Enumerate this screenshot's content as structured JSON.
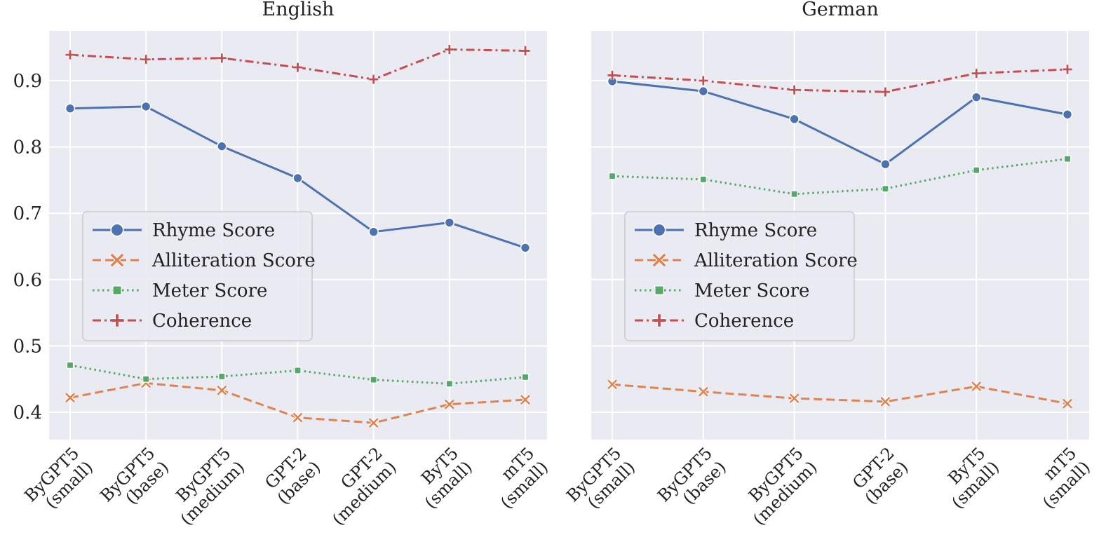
{
  "chart_data": [
    {
      "type": "line",
      "title": "English",
      "xlabel": "",
      "ylabel": "",
      "ylim": [
        0.35,
        0.97
      ],
      "yticks": [
        "0.4",
        "0.5",
        "0.6",
        "0.7",
        "0.8",
        "0.9"
      ],
      "legend_position": "center-left",
      "categories": [
        [
          "ByGPT5",
          "(small)"
        ],
        [
          "ByGPT5",
          "(base)"
        ],
        [
          "ByGPT5",
          "(medium)"
        ],
        [
          "GPT-2",
          "(base)"
        ],
        [
          "GPT-2",
          "(medium)"
        ],
        [
          "ByT5",
          "(small)"
        ],
        [
          "mT5",
          "(small)"
        ]
      ],
      "series": [
        {
          "name": "Rhyme Score",
          "marker": "circle",
          "dash": "solid",
          "color": "#4c72b0",
          "values": [
            0.858,
            0.861,
            0.801,
            0.753,
            0.672,
            0.686,
            0.648
          ]
        },
        {
          "name": "Alliteration Score",
          "marker": "x",
          "dash": "dashed",
          "color": "#dd8452",
          "values": [
            0.422,
            0.444,
            0.433,
            0.392,
            0.384,
            0.412,
            0.419
          ]
        },
        {
          "name": "Meter Score",
          "marker": "square",
          "dash": "dotted",
          "color": "#55a868",
          "values": [
            0.471,
            0.45,
            0.454,
            0.463,
            0.449,
            0.443,
            0.453
          ]
        },
        {
          "name": "Coherence",
          "marker": "plus",
          "dash": "dashdot",
          "color": "#c44e52",
          "values": [
            0.939,
            0.932,
            0.934,
            0.92,
            0.902,
            0.947,
            0.945
          ]
        }
      ]
    },
    {
      "type": "line",
      "title": "German",
      "xlabel": "",
      "ylabel": "",
      "ylim": [
        0.35,
        0.97
      ],
      "yticks": [],
      "legend_position": "center-left",
      "categories": [
        [
          "ByGPT5",
          "(small)"
        ],
        [
          "ByGPT5",
          "(base)"
        ],
        [
          "ByGPT5",
          "(medium)"
        ],
        [
          "GPT-2",
          "(base)"
        ],
        [
          "ByT5",
          "(small)"
        ],
        [
          "mT5",
          "(small)"
        ]
      ],
      "series": [
        {
          "name": "Rhyme Score",
          "marker": "circle",
          "dash": "solid",
          "color": "#4c72b0",
          "values": [
            0.899,
            0.884,
            0.842,
            0.774,
            0.875,
            0.849
          ]
        },
        {
          "name": "Alliteration Score",
          "marker": "x",
          "dash": "dashed",
          "color": "#dd8452",
          "values": [
            0.442,
            0.431,
            0.421,
            0.416,
            0.439,
            0.413
          ]
        },
        {
          "name": "Meter Score",
          "marker": "square",
          "dash": "dotted",
          "color": "#55a868",
          "values": [
            0.756,
            0.751,
            0.729,
            0.737,
            0.765,
            0.782
          ]
        },
        {
          "name": "Coherence",
          "marker": "plus",
          "dash": "dashdot",
          "color": "#c44e52",
          "values": [
            0.908,
            0.9,
            0.886,
            0.883,
            0.911,
            0.917
          ]
        }
      ]
    }
  ]
}
